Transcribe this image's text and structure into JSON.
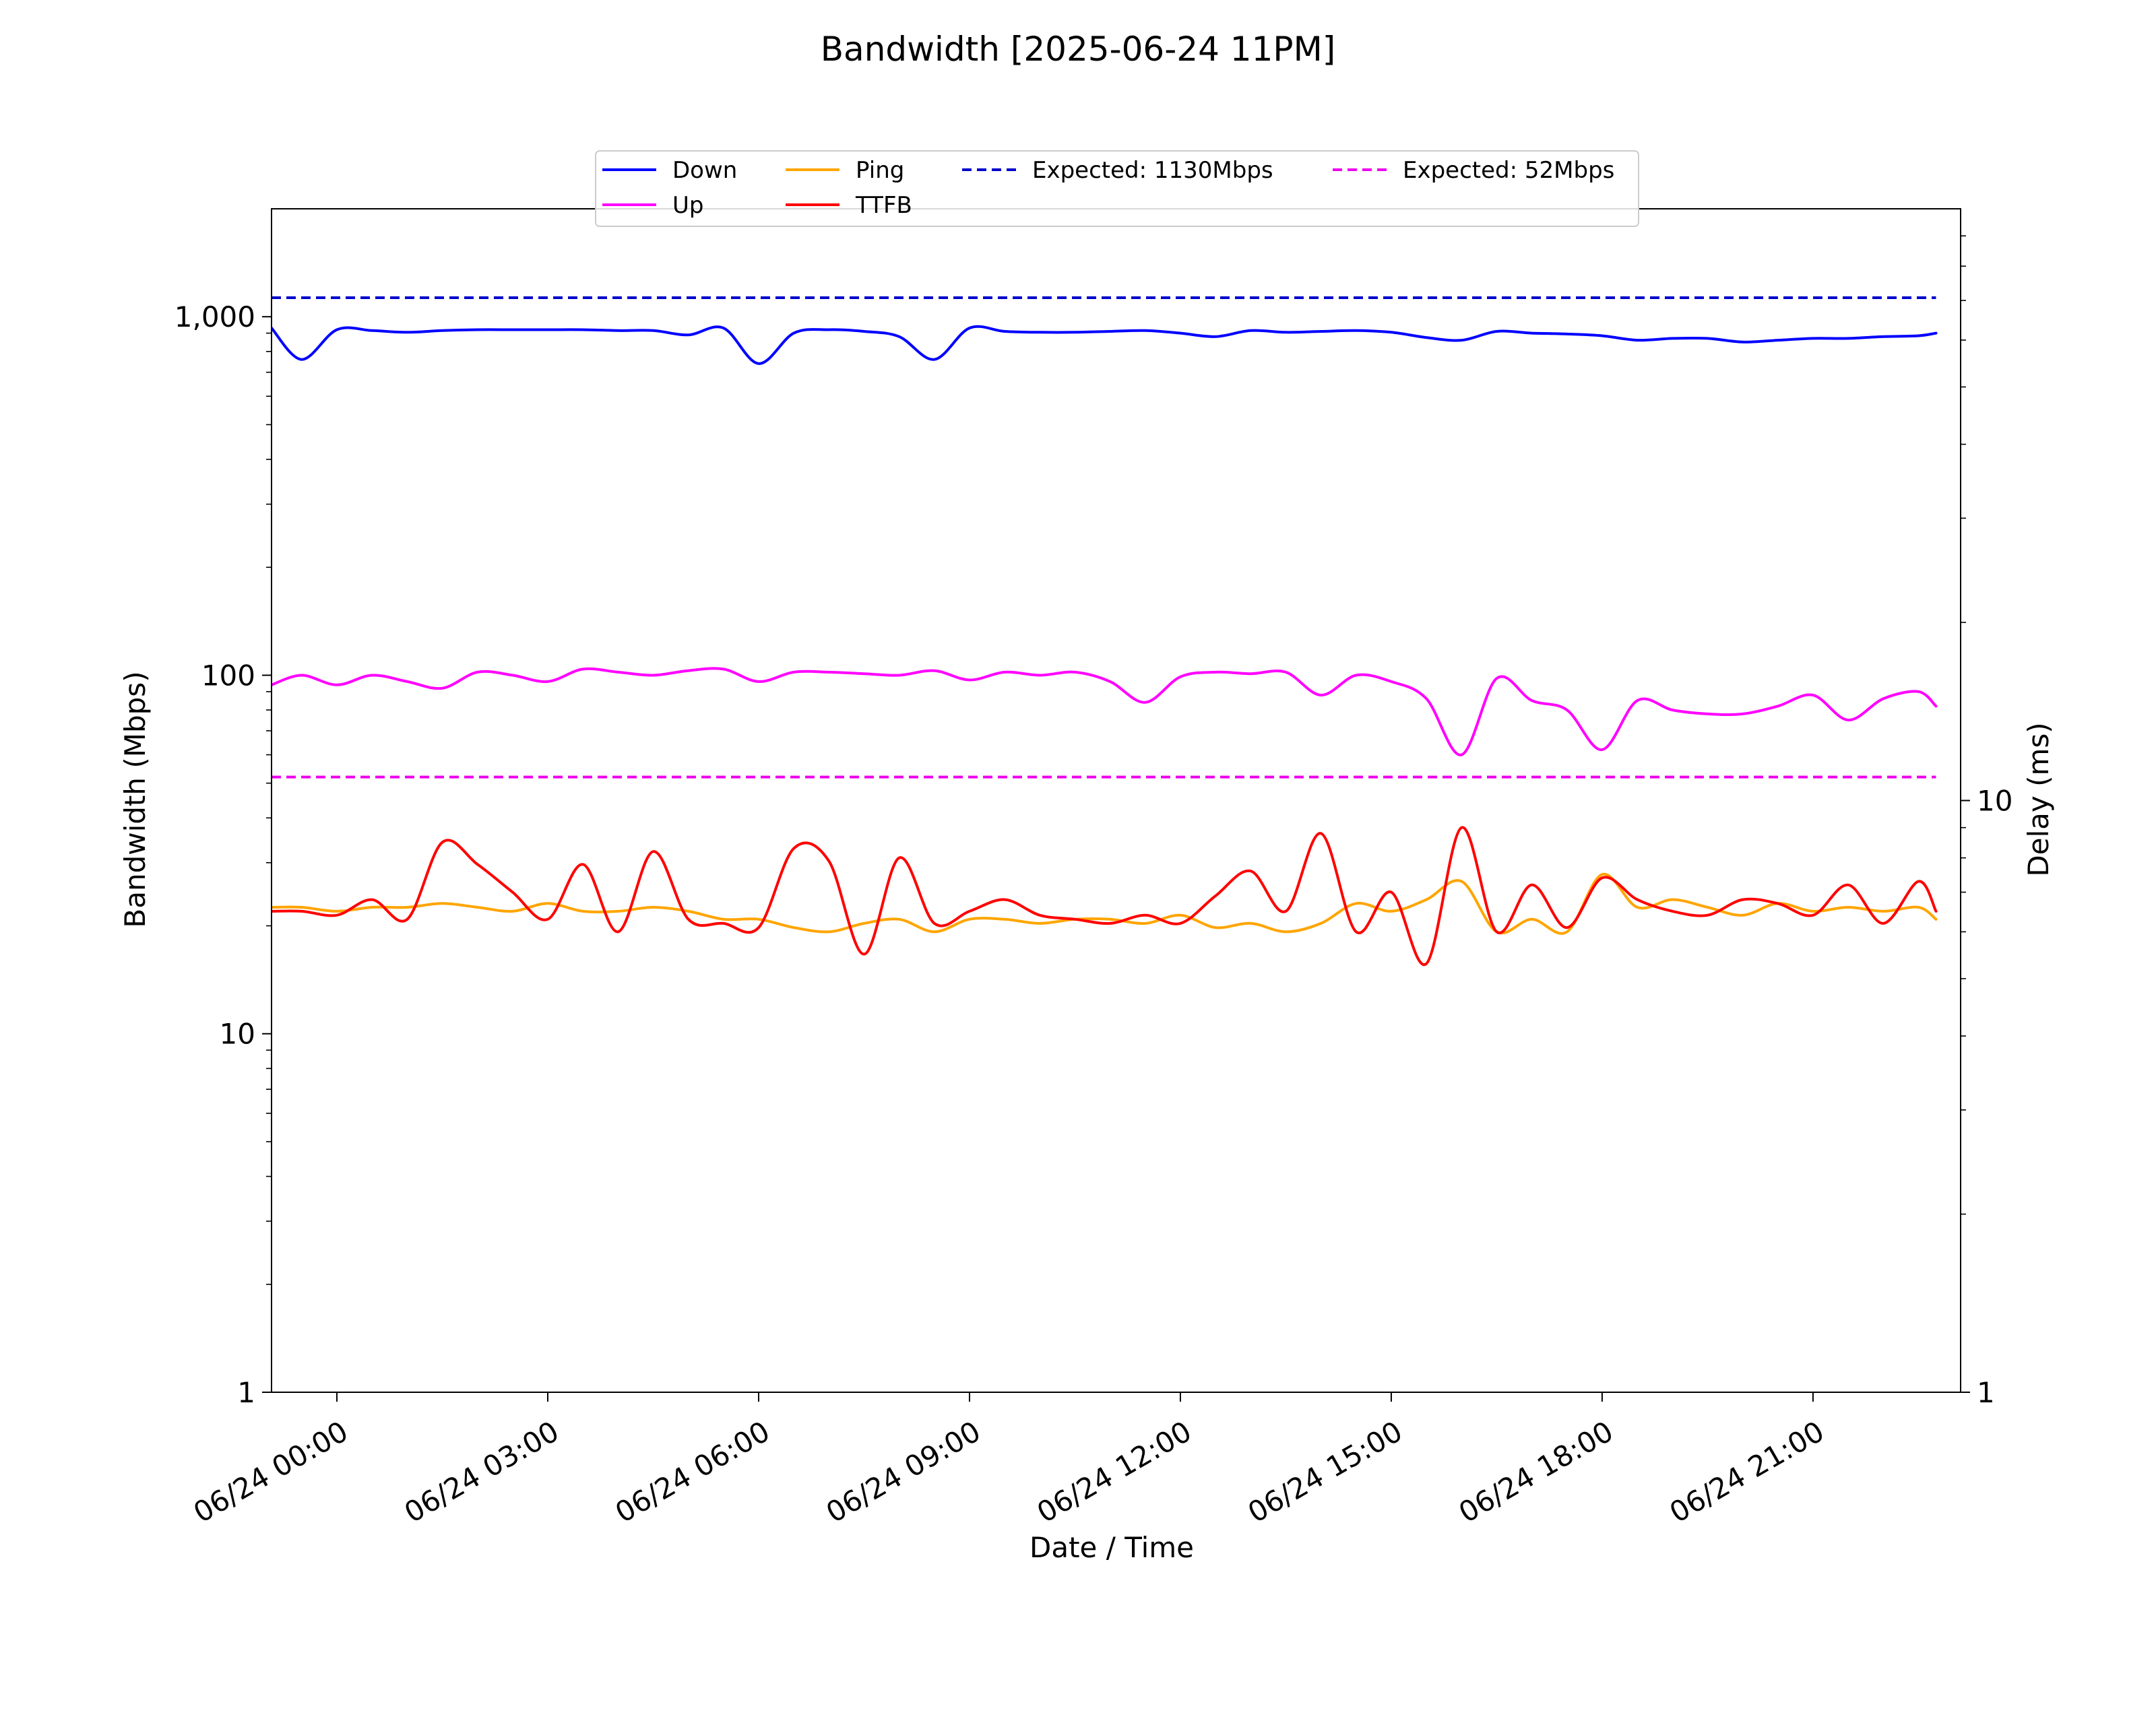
{
  "chart_data": {
    "type": "line",
    "title": "Bandwidth [2025-06-24 11PM]",
    "xlabel": "Date / Time",
    "ylabel": "Bandwidth (Mbps)",
    "y2label": "Delay (ms)",
    "x_unit": "hours since 06/24 00:00",
    "xlim": [
      -0.93,
      23.1
    ],
    "ylim": [
      1,
      2000
    ],
    "y_scale": "log",
    "y2lim": [
      1,
      100
    ],
    "y2_scale": "log",
    "grid": false,
    "legend_position": "top-center",
    "x_ticks": [
      {
        "label": "06/24 00:00",
        "value": 0
      },
      {
        "label": "06/24 03:00",
        "value": 3
      },
      {
        "label": "06/24 06:00",
        "value": 6
      },
      {
        "label": "06/24 09:00",
        "value": 9
      },
      {
        "label": "06/24 12:00",
        "value": 12
      },
      {
        "label": "06/24 15:00",
        "value": 15
      },
      {
        "label": "06/24 18:00",
        "value": 18
      },
      {
        "label": "06/24 21:00",
        "value": 21
      }
    ],
    "y_ticks": [
      {
        "label": "1",
        "value": 1
      },
      {
        "label": "10",
        "value": 10
      },
      {
        "label": "100",
        "value": 100
      },
      {
        "label": "1,000",
        "value": 1000
      }
    ],
    "y2_ticks": [
      {
        "label": "1",
        "value": 1
      },
      {
        "label": "10",
        "value": 10
      }
    ],
    "x": [
      -0.93,
      -0.5,
      0,
      0.5,
      1,
      1.5,
      2,
      2.5,
      3,
      3.5,
      4,
      4.5,
      5,
      5.5,
      6,
      6.5,
      7,
      7.5,
      8,
      8.5,
      9,
      9.5,
      10,
      10.5,
      11,
      11.5,
      12,
      12.5,
      13,
      13.5,
      14,
      14.5,
      15,
      15.5,
      16,
      16.5,
      17,
      17.5,
      18,
      18.5,
      19,
      19.5,
      20,
      20.5,
      21,
      21.5,
      22,
      22.5,
      22.75
    ],
    "series": [
      {
        "name": "Down",
        "axis": "left",
        "color": "#0000ff",
        "style": "solid",
        "values": [
          930,
          760,
          920,
          915,
          905,
          915,
          920,
          920,
          920,
          920,
          915,
          915,
          890,
          930,
          740,
          900,
          920,
          910,
          880,
          760,
          930,
          910,
          905,
          905,
          910,
          915,
          900,
          880,
          915,
          905,
          910,
          915,
          905,
          875,
          860,
          910,
          900,
          895,
          885,
          860,
          870,
          870,
          850,
          860,
          870,
          870,
          880,
          885,
          900
        ]
      },
      {
        "name": "Up",
        "axis": "left",
        "color": "#ff00ff",
        "style": "solid",
        "values": [
          94,
          100,
          94,
          100,
          96,
          92,
          102,
          100,
          96,
          104,
          102,
          100,
          103,
          104,
          96,
          102,
          102,
          101,
          100,
          103,
          97,
          102,
          100,
          102,
          96,
          84,
          99,
          102,
          101,
          102,
          88,
          100,
          96,
          86,
          60,
          98,
          85,
          80,
          62,
          85,
          80,
          78,
          78,
          82,
          88,
          75,
          86,
          90,
          82
        ]
      },
      {
        "name": "Ping",
        "axis": "right",
        "color": "#ffa500",
        "style": "solid",
        "values": [
          6.6,
          6.6,
          6.5,
          6.6,
          6.6,
          6.7,
          6.6,
          6.5,
          6.7,
          6.5,
          6.5,
          6.6,
          6.5,
          6.3,
          6.3,
          6.1,
          6.0,
          6.2,
          6.3,
          6.0,
          6.3,
          6.3,
          6.2,
          6.3,
          6.3,
          6.2,
          6.4,
          6.1,
          6.2,
          6.0,
          6.2,
          6.7,
          6.5,
          6.8,
          7.3,
          6.0,
          6.3,
          6.0,
          7.5,
          6.6,
          6.8,
          6.6,
          6.4,
          6.7,
          6.5,
          6.6,
          6.5,
          6.6,
          6.3
        ]
      },
      {
        "name": "TTFB",
        "axis": "right",
        "color": "#ff0000",
        "style": "solid",
        "values": [
          6.5,
          6.5,
          6.4,
          6.8,
          6.3,
          8.5,
          7.8,
          7.0,
          6.3,
          7.8,
          6.0,
          8.2,
          6.3,
          6.2,
          6.1,
          8.3,
          7.9,
          5.5,
          8.0,
          6.2,
          6.5,
          6.8,
          6.4,
          6.3,
          6.2,
          6.4,
          6.2,
          6.9,
          7.6,
          6.5,
          8.8,
          6.0,
          7.0,
          5.3,
          9.0,
          6.0,
          7.2,
          6.1,
          7.4,
          6.8,
          6.5,
          6.4,
          6.8,
          6.7,
          6.4,
          7.2,
          6.2,
          7.3,
          6.5
        ]
      },
      {
        "name": "Expected: 1130Mbps",
        "axis": "left",
        "color": "#0000cd",
        "style": "dashed",
        "constant": 1130
      },
      {
        "name": "Expected: 52Mbps",
        "axis": "left",
        "color": "#ee00ee",
        "style": "dashed",
        "constant": 52
      }
    ]
  }
}
